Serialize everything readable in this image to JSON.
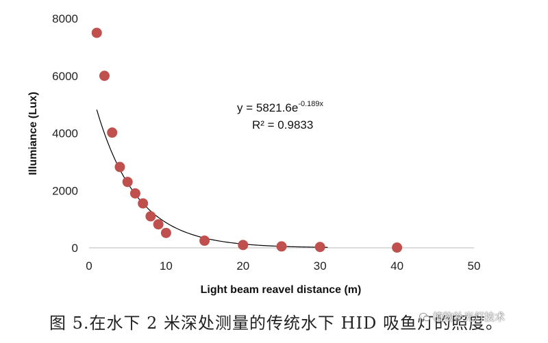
{
  "chart_data": {
    "type": "scatter",
    "xlabel": "Light beam reavel distance (m)",
    "ylabel": "Illumiance (Lux)",
    "xlim": [
      0,
      50
    ],
    "ylim": [
      0,
      8000
    ],
    "x_ticks": [
      0,
      10,
      20,
      30,
      40,
      50
    ],
    "y_ticks": [
      0,
      2000,
      4000,
      6000,
      8000
    ],
    "grid": false,
    "legend": "none",
    "marker_color": "#c0504d",
    "trendline_color": "#000000",
    "series": [
      {
        "x": [
          1,
          2,
          3,
          4,
          5,
          6,
          7,
          8,
          9,
          10,
          15,
          20,
          25,
          30,
          40
        ],
        "y": [
          7500,
          6000,
          4020,
          2820,
          2300,
          1900,
          1550,
          1100,
          820,
          520,
          250,
          100,
          50,
          30,
          10
        ]
      }
    ],
    "trendline": {
      "type": "exponential",
      "a": 5821.6,
      "b": -0.189,
      "x_range": [
        1,
        31
      ]
    },
    "annotations": {
      "equation_base": "y = 5821.6e",
      "equation_exponent": "-0.189x",
      "r2_text": "R² = 0.9833"
    }
  },
  "caption": "图 5.在水下 2 米深处测量的传统水下 HID 吸鱼灯的照度。",
  "watermark": "植物补光灯技术",
  "watermark_icon": "wechat-icon"
}
